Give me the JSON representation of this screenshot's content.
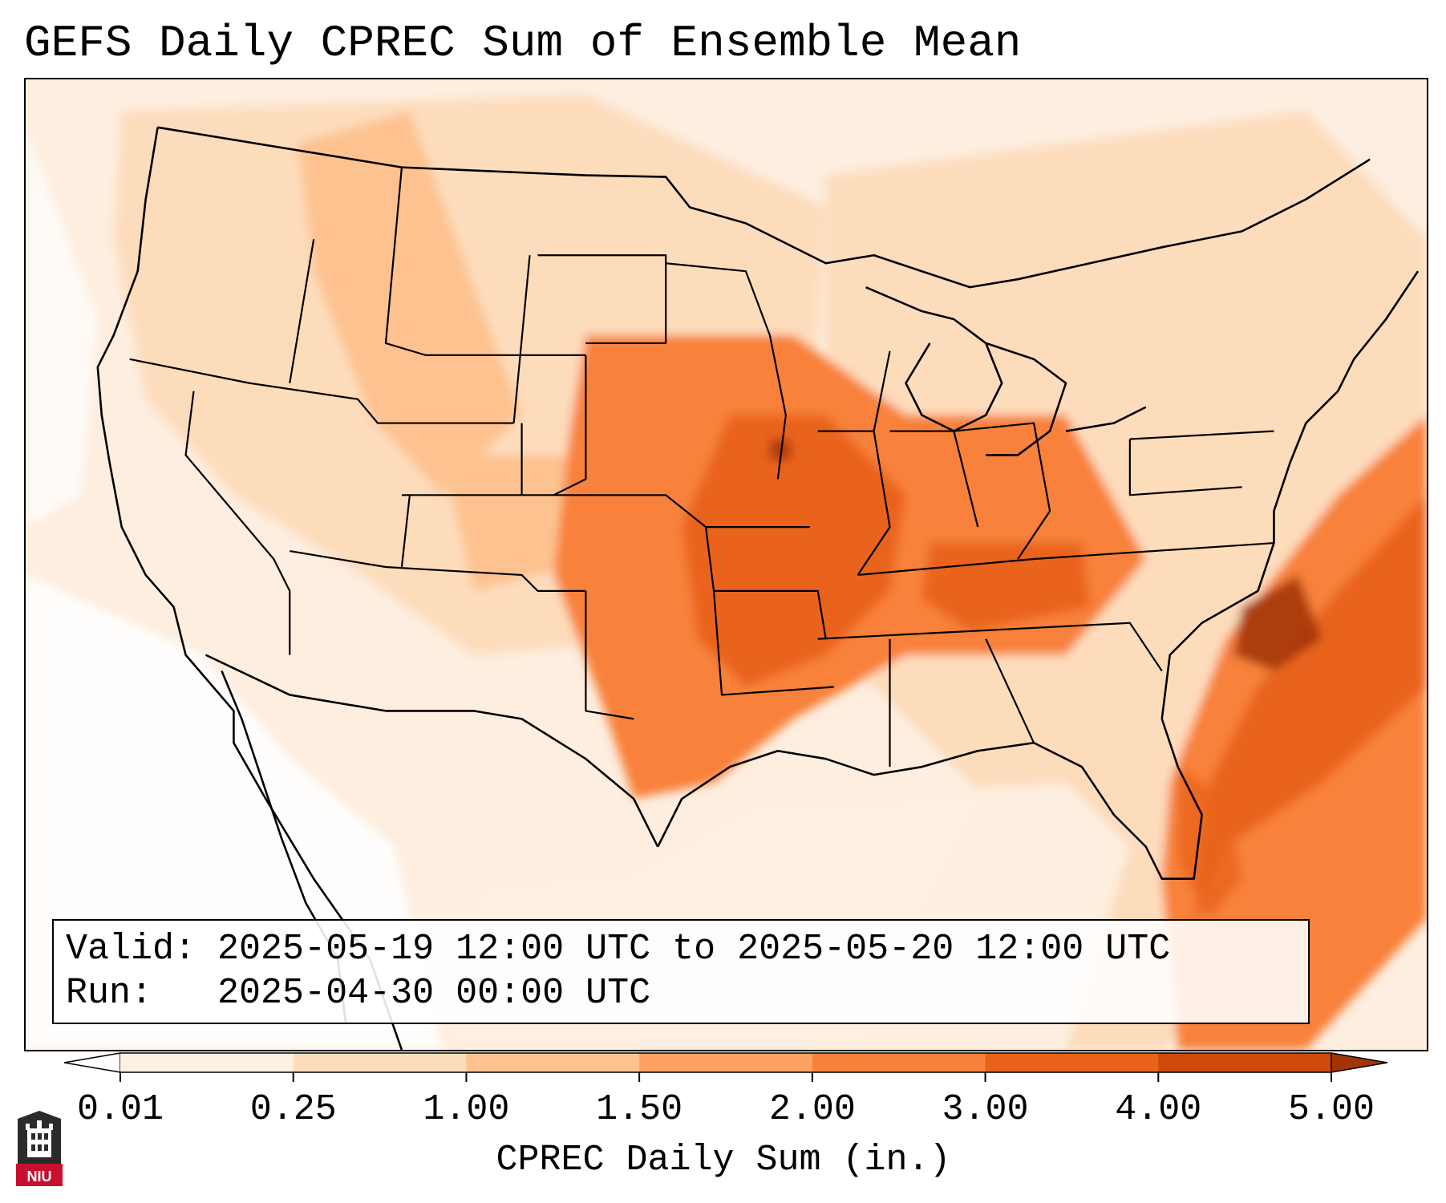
{
  "title": "GEFS Daily CPREC Sum of Ensemble Mean",
  "info": {
    "valid_label": "Valid:",
    "valid_value": "2025-05-19 12:00 UTC to 2025-05-20 12:00 UTC",
    "run_label": "Run:",
    "run_value": "2025-04-30 00:00 UTC"
  },
  "colorbar": {
    "label": "CPREC Daily Sum (in.)",
    "ticks": [
      "0.01",
      "0.25",
      "1.00",
      "1.50",
      "2.00",
      "3.00",
      "4.00",
      "5.00"
    ],
    "colors": [
      "#fef1e3",
      "#fddcbc",
      "#fdc290",
      "#fda262",
      "#f8813a",
      "#e9631a",
      "#d0490c",
      "#a33406"
    ],
    "extend": "both"
  },
  "map": {
    "projection": "Lambert Conformal, CONUS",
    "field": "GEFS ensemble-mean convective precipitation, 24-h sum",
    "colors": {
      "background": "#fdeee0",
      "none": "#ffffff",
      "light": "#fddcbc",
      "moderate": "#fdc290",
      "heavy": "#f8813a",
      "very_heavy": "#e9631a",
      "extreme": "#a33406",
      "borders": "#000000"
    }
  },
  "logo": {
    "text": "NIU",
    "colors": {
      "shield": "#2b2b2b",
      "banner": "#c8102e"
    }
  }
}
